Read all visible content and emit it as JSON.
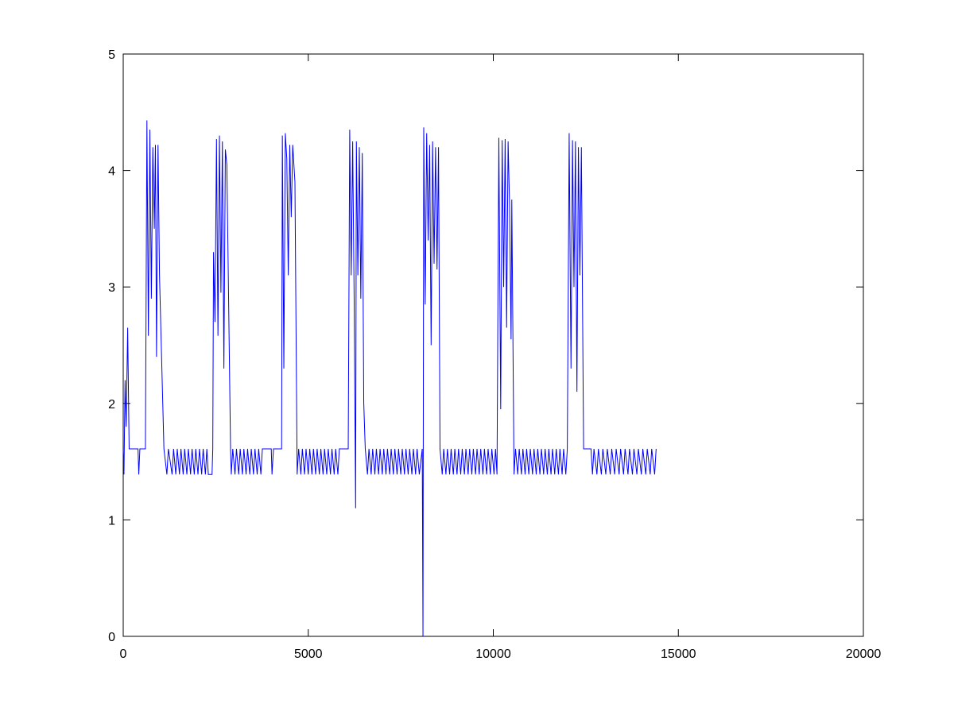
{
  "chart_data": {
    "type": "line",
    "x": [
      0,
      20,
      50,
      80,
      120,
      160,
      400,
      420,
      450,
      600,
      640,
      680,
      720,
      760,
      800,
      840,
      870,
      900,
      940,
      980,
      1100,
      1180,
      1220,
      1320,
      1360,
      1420,
      1460,
      1520,
      1560,
      1620,
      1660,
      1720,
      1760,
      1820,
      1860,
      1920,
      1960,
      2020,
      2060,
      2120,
      2160,
      2220,
      2260,
      2300,
      2400,
      2420,
      2440,
      2480,
      2520,
      2560,
      2600,
      2640,
      2680,
      2720,
      2760,
      2800,
      2900,
      2920,
      2960,
      3020,
      3060,
      3120,
      3160,
      3220,
      3260,
      3320,
      3360,
      3420,
      3460,
      3520,
      3560,
      3620,
      3660,
      3720,
      3760,
      4000,
      4020,
      4060,
      4280,
      4300,
      4340,
      4380,
      4420,
      4460,
      4500,
      4540,
      4580,
      4640,
      4700,
      4740,
      4800,
      4840,
      4900,
      4940,
      5000,
      5040,
      5100,
      5140,
      5200,
      5240,
      5300,
      5340,
      5400,
      5440,
      5500,
      5540,
      5600,
      5640,
      5700,
      5740,
      5800,
      5840,
      6080,
      6120,
      6160,
      6200,
      6240,
      6280,
      6300,
      6340,
      6380,
      6420,
      6460,
      6500,
      6540,
      6600,
      6640,
      6700,
      6740,
      6800,
      6840,
      6900,
      6940,
      7000,
      7040,
      7100,
      7140,
      7200,
      7240,
      7300,
      7340,
      7400,
      7440,
      7500,
      7540,
      7600,
      7640,
      7700,
      7740,
      7800,
      7840,
      7900,
      7940,
      8000,
      8080,
      8100,
      8120,
      8160,
      8200,
      8240,
      8280,
      8320,
      8360,
      8400,
      8440,
      8480,
      8520,
      8560,
      8620,
      8660,
      8720,
      8760,
      8820,
      8860,
      8920,
      8960,
      9020,
      9060,
      9120,
      9160,
      9220,
      9260,
      9320,
      9360,
      9420,
      9460,
      9520,
      9560,
      9620,
      9660,
      9720,
      9760,
      9820,
      9860,
      9920,
      9960,
      10020,
      10060,
      10100,
      10150,
      10200,
      10240,
      10280,
      10320,
      10360,
      10400,
      10440,
      10480,
      10500,
      10560,
      10600,
      10660,
      10700,
      10760,
      10800,
      10860,
      10900,
      10960,
      11000,
      11060,
      11100,
      11160,
      11200,
      11260,
      11300,
      11360,
      11400,
      11460,
      11500,
      11560,
      11600,
      11660,
      11700,
      11760,
      11800,
      11860,
      11900,
      11960,
      12000,
      12050,
      12100,
      12140,
      12180,
      12220,
      12260,
      12300,
      12340,
      12380,
      12440,
      12640,
      12680,
      12720,
      12800,
      12840,
      12920,
      12960,
      13040,
      13080,
      13160,
      13200,
      13280,
      13320,
      13400,
      13440,
      13520,
      13560,
      13640,
      13680,
      13760,
      13800,
      13880,
      13920,
      14000,
      14040,
      14120,
      14160,
      14240,
      14280,
      14360,
      14400
    ],
    "series": [
      {
        "color": "#0000ff",
        "values": [
          1.6,
          1.39,
          2.2,
          1.8,
          2.65,
          1.61,
          1.61,
          1.39,
          1.61,
          1.61,
          4.43,
          2.58,
          4.35,
          2.9,
          4.2,
          3.5,
          4.22,
          2.4,
          4.22,
          3.1,
          1.61,
          1.39,
          1.61,
          1.39,
          1.61,
          1.39,
          1.61,
          1.39,
          1.61,
          1.39,
          1.61,
          1.39,
          1.61,
          1.39,
          1.61,
          1.39,
          1.61,
          1.39,
          1.61,
          1.39,
          1.61,
          1.39,
          1.61,
          1.39,
          1.39,
          1.61,
          3.3,
          2.7,
          4.27,
          2.58,
          4.3,
          2.95,
          4.25,
          2.3,
          4.18,
          4.05,
          1.61,
          1.39,
          1.61,
          1.39,
          1.61,
          1.39,
          1.61,
          1.39,
          1.61,
          1.39,
          1.61,
          1.39,
          1.61,
          1.39,
          1.61,
          1.39,
          1.61,
          1.39,
          1.61,
          1.61,
          1.39,
          1.61,
          1.61,
          4.3,
          2.3,
          4.32,
          4.1,
          3.1,
          4.22,
          3.6,
          4.22,
          3.9,
          1.39,
          1.61,
          1.39,
          1.61,
          1.39,
          1.61,
          1.39,
          1.61,
          1.39,
          1.61,
          1.39,
          1.61,
          1.39,
          1.61,
          1.39,
          1.61,
          1.39,
          1.61,
          1.39,
          1.61,
          1.39,
          1.61,
          1.39,
          1.61,
          1.61,
          4.35,
          3.1,
          4.25,
          2.9,
          1.1,
          4.25,
          3.1,
          4.2,
          2.9,
          4.15,
          2.0,
          1.61,
          1.39,
          1.61,
          1.39,
          1.61,
          1.39,
          1.61,
          1.39,
          1.61,
          1.39,
          1.61,
          1.39,
          1.61,
          1.39,
          1.61,
          1.39,
          1.61,
          1.39,
          1.61,
          1.39,
          1.61,
          1.39,
          1.61,
          1.39,
          1.61,
          1.39,
          1.61,
          1.39,
          1.61,
          1.39,
          1.61,
          0,
          4.37,
          2.85,
          4.32,
          3.4,
          4.22,
          2.5,
          4.25,
          3.2,
          4.2,
          3.15,
          4.2,
          1.61,
          1.39,
          1.61,
          1.39,
          1.61,
          1.39,
          1.61,
          1.39,
          1.61,
          1.39,
          1.61,
          1.39,
          1.61,
          1.39,
          1.61,
          1.39,
          1.61,
          1.39,
          1.61,
          1.39,
          1.61,
          1.39,
          1.61,
          1.39,
          1.61,
          1.39,
          1.61,
          1.39,
          1.61,
          1.39,
          1.61,
          1.39,
          4.28,
          1.95,
          4.26,
          3.0,
          4.27,
          2.65,
          4.25,
          3.7,
          2.55,
          3.75,
          1.39,
          1.61,
          1.39,
          1.61,
          1.39,
          1.61,
          1.39,
          1.61,
          1.39,
          1.61,
          1.39,
          1.61,
          1.39,
          1.61,
          1.39,
          1.61,
          1.39,
          1.61,
          1.39,
          1.61,
          1.39,
          1.61,
          1.39,
          1.61,
          1.39,
          1.61,
          1.39,
          1.61,
          1.39,
          1.61,
          4.32,
          2.3,
          4.26,
          3.0,
          4.25,
          2.1,
          4.2,
          3.1,
          4.2,
          1.61,
          1.61,
          1.39,
          1.61,
          1.39,
          1.61,
          1.39,
          1.61,
          1.39,
          1.61,
          1.39,
          1.61,
          1.39,
          1.61,
          1.39,
          1.61,
          1.39,
          1.61,
          1.39,
          1.61,
          1.39,
          1.61,
          1.39,
          1.61,
          1.39,
          1.61,
          1.39,
          1.61,
          1.39,
          1.61,
          1.39,
          1.61
        ]
      }
    ],
    "xlim": [
      0,
      20000
    ],
    "xticks": [
      0,
      5000,
      10000,
      15000,
      20000
    ],
    "ylim": [
      0,
      5
    ],
    "yticks": [
      0,
      1,
      2,
      3,
      4,
      5
    ],
    "grid": false
  }
}
